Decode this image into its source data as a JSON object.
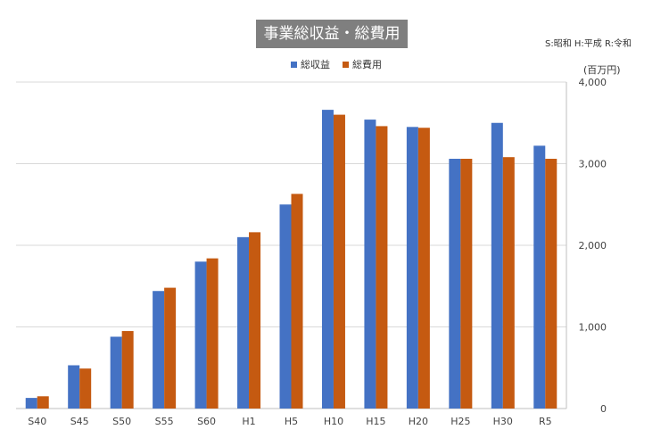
{
  "chart_data": {
    "type": "bar",
    "title": "事業総収益・総費用",
    "note": "S:昭和 H:平成 R:令和",
    "unit": "(百万円)",
    "categories": [
      "S40",
      "S45",
      "S50",
      "S55",
      "S60",
      "H1",
      "H5",
      "H10",
      "H15",
      "H20",
      "H25",
      "H30",
      "R5"
    ],
    "series": [
      {
        "name": "総収益",
        "color": "#4472c4",
        "values": [
          130,
          530,
          880,
          1440,
          1800,
          2100,
          2500,
          3660,
          3540,
          3450,
          3060,
          3500,
          3220
        ]
      },
      {
        "name": "総費用",
        "color": "#c55a11",
        "values": [
          150,
          490,
          950,
          1480,
          1840,
          2160,
          2630,
          3600,
          3460,
          3440,
          3060,
          3080,
          3060
        ]
      }
    ],
    "ylim": [
      0,
      4000
    ],
    "yticks": [
      0,
      1000,
      2000,
      3000,
      4000
    ],
    "ytick_labels": [
      "0",
      "1,000",
      "2,000",
      "3,000",
      "4,000"
    ],
    "y_axis_side": "right",
    "grid": true,
    "legend_position": "top"
  }
}
